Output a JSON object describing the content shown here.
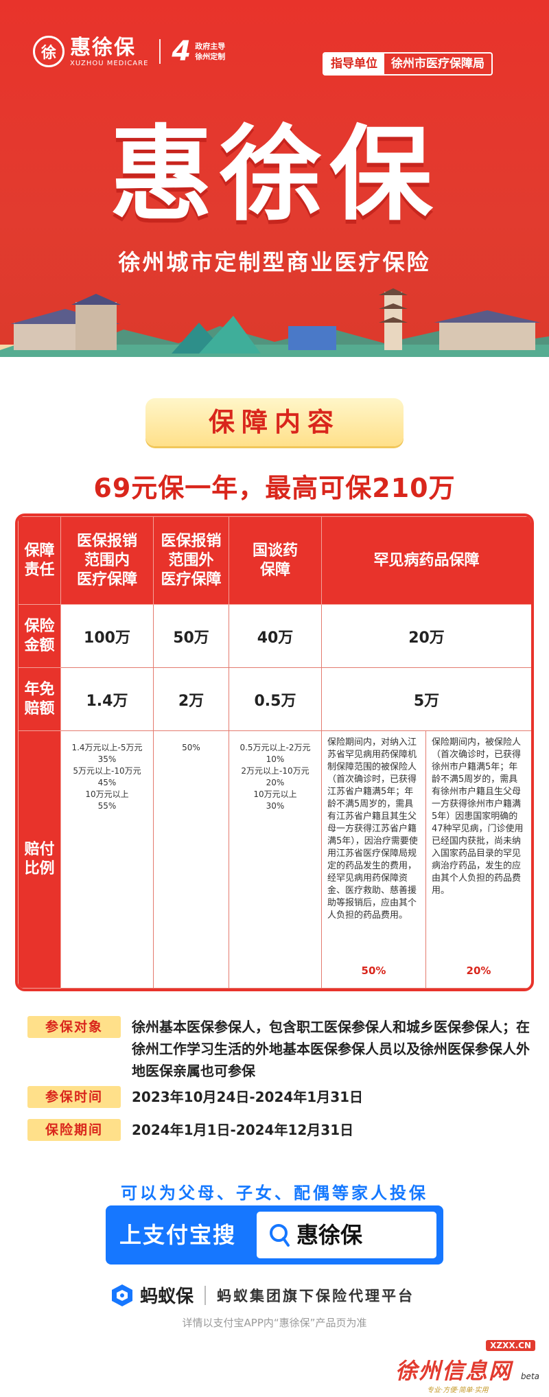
{
  "header": {
    "logo_char": "徐",
    "logo_name": "惠徐保",
    "logo_sub": "XUZHOU MEDICARE",
    "four": "4",
    "four_line1": "政府主导",
    "four_line2": "徐州定制",
    "guide_label": "指导单位",
    "guide_unit": "徐州市医疗保障局",
    "title": "惠徐保",
    "subtitle": "徐州城市定制型商业医疗保险"
  },
  "section_title": "保障内容",
  "headline": "69元保一年，最高可保210万",
  "table": {
    "row_heads": [
      "保障\n责任",
      "保险\n金额",
      "年免\n赔额",
      "赔付\n比例"
    ],
    "col_heads": [
      "医保报销\n范围内\n医疗保障",
      "医保报销\n范围外\n医疗保障",
      "国谈药\n保障",
      "罕见病药品保障"
    ],
    "amounts": [
      "100万",
      "50万",
      "40万",
      "20万"
    ],
    "deductibles": [
      "1.4万",
      "2万",
      "0.5万",
      "5万"
    ],
    "ratio_in": "1.4万元以上-5万元\n35%\n5万元以上-10万元\n45%\n10万元以上\n55%",
    "ratio_out": "50%",
    "ratio_drug": "0.5万元以上-2万元\n10%\n2万元以上-10万元\n20%\n10万元以上\n30%",
    "rare_a_text": "保险期间内，对纳入江苏省罕见病用药保障机制保障范围的被保险人（首次确诊时，已获得江苏省户籍满5年；年龄不满5周岁的，需具有江苏省户籍且其生父母一方获得江苏省户籍满5年），因治疗需要使用江苏省医疗保障局规定的药品发生的费用，经罕见病用药保障资金、医疗救助、慈善援助等报销后，应由其个人负担的药品费用。",
    "rare_a_pct": "50%",
    "rare_b_text": "保险期间内，被保险人（首次确诊时，已获得徐州市户籍满5年；年龄不满5周岁的，需具有徐州市户籍且生父母一方获得徐州市户籍满5年）因患国家明确的47种罕见病，门诊使用已经国内获批，尚未纳入国家药品目录的罕见病治疗药品，发生的应由其个人负担的药品费用。",
    "rare_b_pct": "20%"
  },
  "info": [
    {
      "tag": "参保对象",
      "text": "徐州基本医保参保人，包含职工医保参保人和城乡医保参保人；在徐州工作学习生活的外地基本医保参保人员以及徐州医保参保人外地医保亲属也可参保"
    },
    {
      "tag": "参保时间",
      "text": "2023年10月24日-2024年1月31日"
    },
    {
      "tag": "保险期间",
      "text": "2024年1月1日-2024年12月31日"
    }
  ],
  "cta": {
    "family": "可以为父母、子女、配偶等家人投保",
    "search_label": "上支付宝搜",
    "search_word": "惠徐保"
  },
  "ant": {
    "name": "蚂蚁保",
    "desc": "蚂蚁集团旗下保险代理平台",
    "foot": "详情以支付宝APP内“惠徐保”产品页为准"
  },
  "watermark": {
    "url": "XZXX.CN",
    "name": "徐州信息网",
    "beta": "beta",
    "tagline": "专业·方便·简单·实用"
  },
  "colors": {
    "red": "#e8332b",
    "gold": "#ffe08a",
    "blue": "#1677ff"
  }
}
